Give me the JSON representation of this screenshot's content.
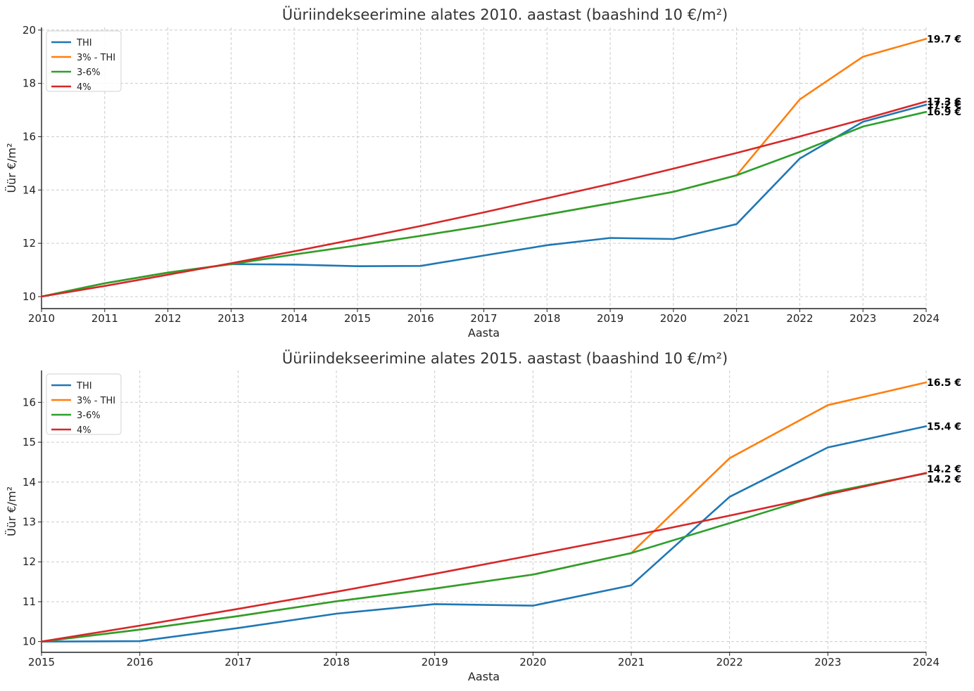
{
  "chart_data": [
    {
      "type": "line",
      "title": "Üüriindekseerimine alates 2010. aastast (baashind 10 €/m²)",
      "xlabel": "Aasta",
      "ylabel": "Üür €/m²",
      "xlim": [
        2010,
        2024
      ],
      "ylim": [
        9.55,
        20.1
      ],
      "xticks": [
        "2010",
        "2011",
        "2012",
        "2013",
        "2014",
        "2015",
        "2016",
        "2017",
        "2018",
        "2019",
        "2020",
        "2021",
        "2022",
        "2023",
        "2024"
      ],
      "yticks": [
        "10",
        "12",
        "14",
        "16",
        "18",
        "20"
      ],
      "grid": true,
      "legend_position": "top-left",
      "x": [
        2010,
        2011,
        2012,
        2013,
        2014,
        2015,
        2016,
        2017,
        2018,
        2019,
        2020,
        2021,
        2022,
        2023,
        2024
      ],
      "series": [
        {
          "name": "THI",
          "color": "#1f77b4",
          "values": [
            10.0,
            10.5,
            10.9,
            11.22,
            11.2,
            11.14,
            11.15,
            11.54,
            11.93,
            12.2,
            12.16,
            12.72,
            15.18,
            16.56,
            17.2
          ]
        },
        {
          "name": "3% - THI",
          "color": "#ff7f0e",
          "values": [
            10.0,
            10.5,
            10.9,
            11.22,
            11.58,
            11.92,
            12.28,
            12.66,
            13.08,
            13.5,
            13.93,
            14.55,
            17.4,
            19.0,
            19.67
          ]
        },
        {
          "name": "3-6%",
          "color": "#2ca02c",
          "values": [
            10.0,
            10.5,
            10.9,
            11.22,
            11.58,
            11.92,
            12.28,
            12.66,
            13.08,
            13.5,
            13.93,
            14.55,
            15.43,
            16.38,
            16.93
          ]
        },
        {
          "name": "4%",
          "color": "#d62728",
          "values": [
            10.0,
            10.4,
            10.82,
            11.25,
            11.7,
            12.17,
            12.65,
            13.16,
            13.69,
            14.23,
            14.8,
            15.39,
            16.01,
            16.65,
            17.32
          ]
        }
      ],
      "end_labels": [
        {
          "text": "19.7 €",
          "value": 19.67
        },
        {
          "text": "17.3 €",
          "value": 17.32
        },
        {
          "text": "17.2 €",
          "value": 17.2
        },
        {
          "text": "16.9 €",
          "value": 16.93
        }
      ]
    },
    {
      "type": "line",
      "title": "Üüriindekseerimine alates 2015. aastast (baashind 10 €/m²)",
      "xlabel": "Aasta",
      "ylabel": "Üür €/m²",
      "xlim": [
        2015,
        2024
      ],
      "ylim": [
        9.73,
        16.8
      ],
      "xticks": [
        "2015",
        "2016",
        "2017",
        "2018",
        "2019",
        "2020",
        "2021",
        "2022",
        "2023",
        "2024"
      ],
      "yticks": [
        "10",
        "11",
        "12",
        "13",
        "14",
        "15",
        "16"
      ],
      "grid": true,
      "legend_position": "top-left",
      "x": [
        2015,
        2016,
        2017,
        2018,
        2019,
        2020,
        2021,
        2022,
        2023,
        2024
      ],
      "series": [
        {
          "name": "THI",
          "color": "#1f77b4",
          "values": [
            10.0,
            10.01,
            10.34,
            10.7,
            10.94,
            10.9,
            11.41,
            13.63,
            14.87,
            15.4
          ]
        },
        {
          "name": "3% - THI",
          "color": "#ff7f0e",
          "values": [
            10.0,
            10.3,
            10.64,
            11.01,
            11.33,
            11.68,
            12.22,
            14.6,
            15.93,
            16.5
          ]
        },
        {
          "name": "3-6%",
          "color": "#2ca02c",
          "values": [
            10.0,
            10.3,
            10.64,
            11.01,
            11.33,
            11.68,
            12.22,
            12.97,
            13.73,
            14.22
          ]
        },
        {
          "name": "4%",
          "color": "#d62728",
          "values": [
            10.0,
            10.4,
            10.82,
            11.25,
            11.7,
            12.17,
            12.65,
            13.16,
            13.69,
            14.23
          ]
        }
      ],
      "end_labels": [
        {
          "text": "16.5 €",
          "value": 16.5
        },
        {
          "text": "15.4 €",
          "value": 15.4
        },
        {
          "text": "14.2 €",
          "value": 14.23
        },
        {
          "text": "14.2 €",
          "value": 14.22
        }
      ]
    }
  ]
}
